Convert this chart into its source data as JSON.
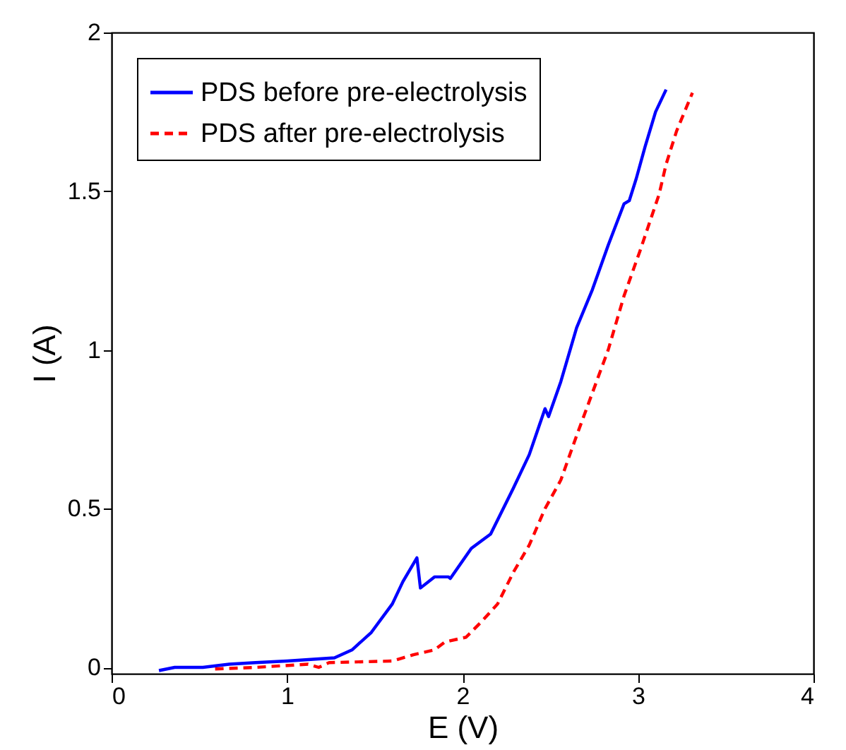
{
  "chart_data": {
    "type": "line",
    "xlabel": "E (V)",
    "ylabel": "I (A)",
    "xlim": [
      0,
      4
    ],
    "xticks": [
      0,
      1,
      2,
      3,
      4
    ],
    "ylim": [
      -0.02,
      2
    ],
    "yticks": [
      0,
      0.5,
      1,
      1.5,
      2
    ],
    "grid": false,
    "legend": "top left",
    "marker": "none",
    "series": [
      {
        "name": "PDS before pre-electrolysis",
        "color": "#0000ff",
        "line_style": "solid",
        "x": [
          0.27,
          0.36,
          0.52,
          0.67,
          0.82,
          1.0,
          1.27,
          1.37,
          1.48,
          1.6,
          1.66,
          1.74,
          1.76,
          1.84,
          1.92,
          1.93,
          2.05,
          2.16,
          2.29,
          2.38,
          2.47,
          2.49,
          2.56,
          2.65,
          2.74,
          2.83,
          2.92,
          2.95,
          2.99,
          3.04,
          3.1,
          3.16
        ],
        "values": [
          -0.01,
          0.0,
          0.0,
          0.01,
          0.015,
          0.02,
          0.03,
          0.055,
          0.11,
          0.2,
          0.27,
          0.345,
          0.25,
          0.285,
          0.285,
          0.28,
          0.375,
          0.42,
          0.565,
          0.67,
          0.815,
          0.79,
          0.9,
          1.07,
          1.19,
          1.33,
          1.46,
          1.47,
          1.54,
          1.64,
          1.75,
          1.82
        ]
      },
      {
        "name": "PDS after pre-electrolysis",
        "color": "#ff0000",
        "line_style": "dashed",
        "x": [
          0.59,
          0.82,
          1.12,
          1.18,
          1.24,
          1.6,
          1.72,
          1.84,
          1.9,
          2.02,
          2.11,
          2.2,
          2.29,
          2.38,
          2.47,
          2.56,
          2.65,
          2.74,
          2.83,
          2.92,
          3.01,
          3.12,
          3.16,
          3.22,
          3.31
        ],
        "values": [
          -0.005,
          0.0,
          0.01,
          0.0,
          0.015,
          0.02,
          0.04,
          0.055,
          0.08,
          0.095,
          0.145,
          0.2,
          0.3,
          0.385,
          0.5,
          0.59,
          0.73,
          0.865,
          1.0,
          1.17,
          1.31,
          1.49,
          1.585,
          1.69,
          1.81
        ]
      }
    ]
  }
}
